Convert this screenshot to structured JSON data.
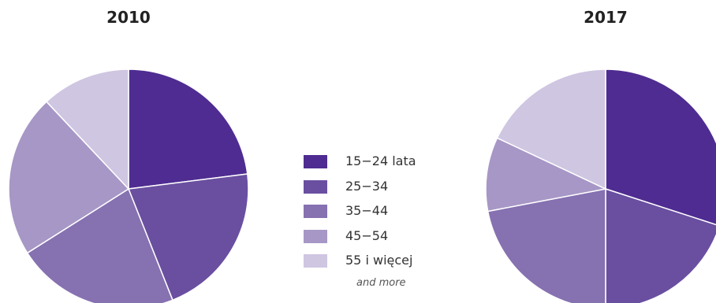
{
  "colors": {
    "15-24": "#4f2c91",
    "25-34": "#6a4fa0",
    "35-44": "#8671b1",
    "45-54": "#a797c6",
    "55+": "#cfc6e2"
  },
  "legend": {
    "items": [
      {
        "label": "15−24 lata",
        "color": "#4f2c91"
      },
      {
        "label": "25−34",
        "color": "#6a4fa0"
      },
      {
        "label": "35−44",
        "color": "#8671b1"
      },
      {
        "label": "45−54",
        "color": "#a797c6"
      },
      {
        "label": "55 i więcej",
        "color": "#cfc6e2"
      }
    ],
    "subtitle": "and more"
  },
  "chart_data": [
    {
      "type": "pie",
      "title": "2010",
      "categories": [
        "15−24 lata",
        "25−34",
        "35−44",
        "45−54",
        "55 i więcej"
      ],
      "values": [
        23,
        21,
        22,
        22,
        12
      ]
    },
    {
      "type": "pie",
      "title": "2017",
      "categories": [
        "15−24 lata",
        "25−34",
        "35−44",
        "45−54",
        "55 i więcej"
      ],
      "values": [
        30,
        20,
        22,
        10,
        18
      ]
    }
  ]
}
